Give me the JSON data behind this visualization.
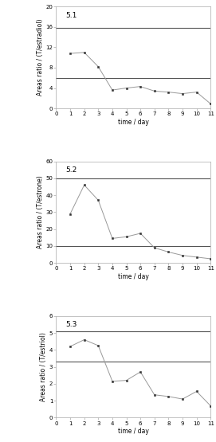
{
  "plots": [
    {
      "label": "5.1",
      "ylabel": "Areas ratio / (T/estradiol)",
      "xlabel": "time / day",
      "ylim": [
        0,
        20
      ],
      "yticks": [
        0,
        4,
        8,
        12,
        16,
        20
      ],
      "hlines": [
        15.8,
        6.0
      ],
      "x": [
        1,
        2,
        3,
        4,
        5,
        6,
        7,
        8,
        9,
        10,
        11
      ],
      "y": [
        10.8,
        11.0,
        8.2,
        3.6,
        4.0,
        4.3,
        3.4,
        3.2,
        2.9,
        3.2,
        0.9
      ]
    },
    {
      "label": "5.2",
      "ylabel": "Areas ratio / (T/estrone)",
      "xlabel": "time / day",
      "ylim": [
        0,
        60
      ],
      "yticks": [
        0,
        10,
        20,
        30,
        40,
        50,
        60
      ],
      "hlines": [
        50.0,
        10.0
      ],
      "x": [
        1,
        2,
        3,
        4,
        5,
        6,
        7,
        8,
        9,
        10,
        11
      ],
      "y": [
        29.0,
        46.0,
        37.0,
        14.5,
        15.5,
        17.5,
        9.0,
        6.5,
        4.5,
        3.5,
        2.5
      ]
    },
    {
      "label": "5.3",
      "ylabel": "Areas ratio / (T/estriol)",
      "xlabel": "time / day",
      "ylim": [
        0,
        6
      ],
      "yticks": [
        0,
        1,
        2,
        3,
        4,
        5,
        6
      ],
      "hlines": [
        5.1,
        3.3
      ],
      "x": [
        1,
        2,
        3,
        4,
        5,
        6,
        7,
        8,
        9,
        10,
        11
      ],
      "y": [
        4.2,
        4.6,
        4.25,
        2.15,
        2.2,
        2.7,
        1.35,
        1.25,
        1.1,
        1.55,
        0.7
      ]
    }
  ],
  "line_color": "#999999",
  "hline_color": "#555555",
  "marker": "s",
  "marker_size": 2.0,
  "marker_color": "#333333",
  "bg_color": "#ffffff",
  "label_fontsize": 5.5,
  "tick_fontsize": 5.0,
  "subplot_label_fontsize": 6.5
}
